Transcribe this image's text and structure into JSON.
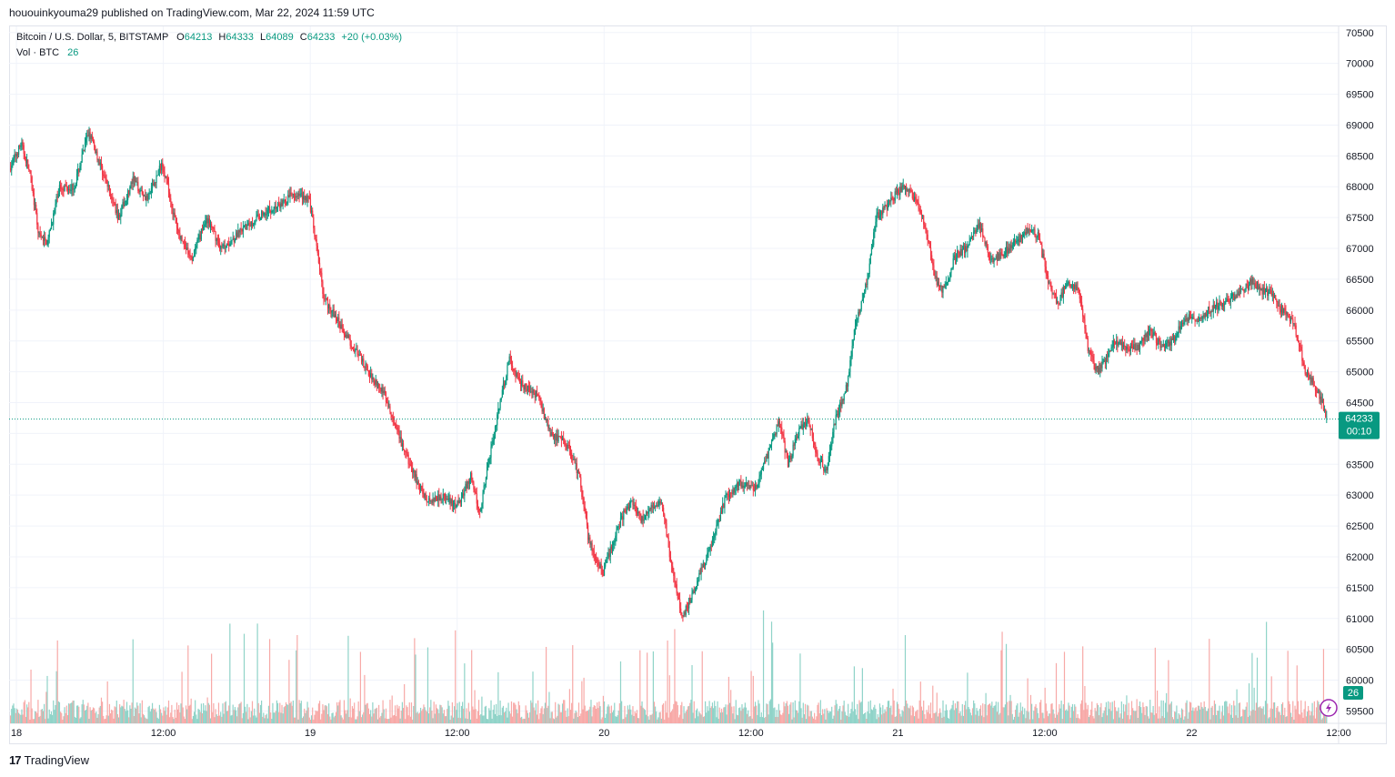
{
  "published": "hououinkyouma29 published on TradingView.com, Mar 22, 2024 11:59 UTC",
  "legend": {
    "symbol": "Bitcoin / U.S. Dollar, 5, BITSTAMP",
    "open_label": "O",
    "open": "64213",
    "high_label": "H",
    "high": "64333",
    "low_label": "L",
    "low": "64089",
    "close_label": "C",
    "close": "64233",
    "change": "+20 (+0.03%)",
    "vol_label": "Vol · BTC",
    "vol_value": "26"
  },
  "price_badge": {
    "price": "64233",
    "countdown": "00:10"
  },
  "volume_badge": "26",
  "footer": {
    "logo_mark": "17",
    "name": "TradingView"
  },
  "colors": {
    "up": "#089981",
    "down": "#f23645",
    "grid": "#f0f3fa",
    "badge": "#089981",
    "vol_up": "#8fd3c8",
    "vol_down": "#f7a9a7"
  },
  "icons": {
    "alert": "lightning-icon"
  },
  "chart_data": {
    "type": "candlestick",
    "timeframe": "5",
    "ylim": [
      59300,
      70600
    ],
    "yticks": [
      59500,
      60000,
      60500,
      61000,
      61500,
      62000,
      62500,
      63000,
      63500,
      64000,
      64500,
      65000,
      65500,
      66000,
      66500,
      67000,
      67500,
      68000,
      68500,
      69000,
      69500,
      70000,
      70500
    ],
    "xticks": [
      {
        "label": "18",
        "day": 0.0
      },
      {
        "label": "12:00",
        "day": 0.5
      },
      {
        "label": "19",
        "day": 1.0
      },
      {
        "label": "12:00",
        "day": 1.5
      },
      {
        "label": "20",
        "day": 2.0
      },
      {
        "label": "12:00",
        "day": 2.5
      },
      {
        "label": "21",
        "day": 3.0
      },
      {
        "label": "12:00",
        "day": 3.5
      },
      {
        "label": "22",
        "day": 4.0
      },
      {
        "label": "12:00",
        "day": 4.5
      }
    ],
    "xlim": [
      -0.025,
      4.5
    ],
    "last_price": 64233,
    "grid": true,
    "price_path": [
      [
        -0.02,
        68300
      ],
      [
        0.02,
        68700
      ],
      [
        0.05,
        68200
      ],
      [
        0.08,
        67200
      ],
      [
        0.11,
        67100
      ],
      [
        0.15,
        68000
      ],
      [
        0.2,
        68000
      ],
      [
        0.25,
        68900
      ],
      [
        0.3,
        68200
      ],
      [
        0.35,
        67500
      ],
      [
        0.4,
        68100
      ],
      [
        0.45,
        67800
      ],
      [
        0.5,
        68400
      ],
      [
        0.55,
        67300
      ],
      [
        0.6,
        66800
      ],
      [
        0.65,
        67500
      ],
      [
        0.7,
        67000
      ],
      [
        0.75,
        67200
      ],
      [
        0.8,
        67400
      ],
      [
        0.85,
        67600
      ],
      [
        0.9,
        67700
      ],
      [
        0.95,
        67900
      ],
      [
        1.0,
        67800
      ],
      [
        1.05,
        66200
      ],
      [
        1.1,
        65800
      ],
      [
        1.15,
        65400
      ],
      [
        1.2,
        65000
      ],
      [
        1.25,
        64700
      ],
      [
        1.3,
        64000
      ],
      [
        1.35,
        63400
      ],
      [
        1.4,
        62900
      ],
      [
        1.45,
        63000
      ],
      [
        1.5,
        62800
      ],
      [
        1.55,
        63300
      ],
      [
        1.58,
        62700
      ],
      [
        1.62,
        63800
      ],
      [
        1.68,
        65200
      ],
      [
        1.72,
        64800
      ],
      [
        1.78,
        64600
      ],
      [
        1.82,
        64000
      ],
      [
        1.88,
        63800
      ],
      [
        1.92,
        63300
      ],
      [
        1.95,
        62300
      ],
      [
        2.0,
        61700
      ],
      [
        2.03,
        62200
      ],
      [
        2.07,
        62700
      ],
      [
        2.1,
        62900
      ],
      [
        2.13,
        62600
      ],
      [
        2.17,
        62800
      ],
      [
        2.2,
        62900
      ],
      [
        2.23,
        61900
      ],
      [
        2.27,
        61000
      ],
      [
        2.32,
        61600
      ],
      [
        2.37,
        62200
      ],
      [
        2.42,
        63000
      ],
      [
        2.47,
        63200
      ],
      [
        2.52,
        63100
      ],
      [
        2.57,
        63800
      ],
      [
        2.6,
        64200
      ],
      [
        2.63,
        63500
      ],
      [
        2.67,
        64100
      ],
      [
        2.7,
        64200
      ],
      [
        2.73,
        63600
      ],
      [
        2.76,
        63400
      ],
      [
        2.79,
        64200
      ],
      [
        2.83,
        64800
      ],
      [
        2.86,
        65800
      ],
      [
        2.9,
        66500
      ],
      [
        2.93,
        67500
      ],
      [
        2.97,
        67700
      ],
      [
        3.0,
        67900
      ],
      [
        3.03,
        68000
      ],
      [
        3.07,
        67700
      ],
      [
        3.1,
        67300
      ],
      [
        3.13,
        66500
      ],
      [
        3.16,
        66300
      ],
      [
        3.2,
        66900
      ],
      [
        3.24,
        67000
      ],
      [
        3.28,
        67400
      ],
      [
        3.32,
        66800
      ],
      [
        3.36,
        66900
      ],
      [
        3.4,
        67100
      ],
      [
        3.45,
        67300
      ],
      [
        3.48,
        67200
      ],
      [
        3.52,
        66400
      ],
      [
        3.55,
        66100
      ],
      [
        3.58,
        66500
      ],
      [
        3.62,
        66300
      ],
      [
        3.65,
        65400
      ],
      [
        3.68,
        65000
      ],
      [
        3.71,
        65200
      ],
      [
        3.74,
        65500
      ],
      [
        3.78,
        65400
      ],
      [
        3.82,
        65400
      ],
      [
        3.86,
        65700
      ],
      [
        3.9,
        65400
      ],
      [
        3.94,
        65500
      ],
      [
        3.98,
        65900
      ],
      [
        4.02,
        65800
      ],
      [
        4.06,
        66000
      ],
      [
        4.1,
        66100
      ],
      [
        4.14,
        66200
      ],
      [
        4.18,
        66300
      ],
      [
        4.21,
        66500
      ],
      [
        4.24,
        66300
      ],
      [
        4.27,
        66300
      ],
      [
        4.31,
        66000
      ],
      [
        4.35,
        65800
      ],
      [
        4.39,
        65000
      ],
      [
        4.42,
        64800
      ],
      [
        4.45,
        64500
      ],
      [
        4.46,
        64233
      ]
    ]
  }
}
